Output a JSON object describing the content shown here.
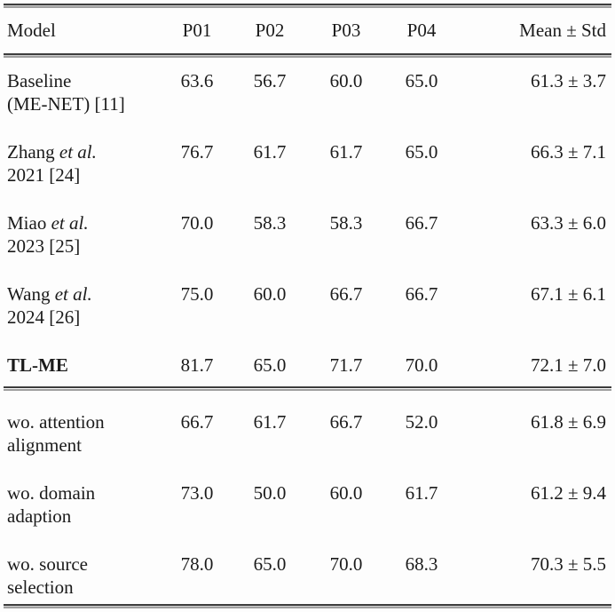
{
  "table": {
    "columns": {
      "model": "Model",
      "p01": "P01",
      "p02": "P02",
      "p03": "P03",
      "p04": "P04",
      "mean": "Mean ± Std"
    },
    "rows": [
      {
        "name": "Baseline",
        "etal": "",
        "line2": "(ME-NET) [11]",
        "p01": "63.6",
        "p02": "56.7",
        "p03": "60.0",
        "p04": "65.0",
        "mean": "61.3 ± 3.7"
      },
      {
        "name": "Zhang",
        "etal": "et al.",
        "line2": "2021 [24]",
        "p01": "76.7",
        "p02": "61.7",
        "p03": "61.7",
        "p04": "65.0",
        "mean": "66.3 ± 7.1"
      },
      {
        "name": "Miao",
        "etal": "et al.",
        "line2": "2023 [25]",
        "p01": "70.0",
        "p02": "58.3",
        "p03": "58.3",
        "p04": "66.7",
        "mean": "63.3 ± 6.0"
      },
      {
        "name": "Wang",
        "etal": "et al.",
        "line2": "2024 [26]",
        "p01": "75.0",
        "p02": "60.0",
        "p03": "66.7",
        "p04": "66.7",
        "mean": "67.1 ± 6.1"
      },
      {
        "name": "TL-ME",
        "etal": "",
        "line2": "",
        "p01": "81.7",
        "p02": "65.0",
        "p03": "71.7",
        "p04": "70.0",
        "mean": "72.1 ± 7.0"
      },
      {
        "name": "wo. attention",
        "etal": "",
        "line2": "alignment",
        "p01": "66.7",
        "p02": "61.7",
        "p03": "66.7",
        "p04": "52.0",
        "mean": "61.8 ± 6.9"
      },
      {
        "name": "wo. domain",
        "etal": "",
        "line2": "adaption",
        "p01": "73.0",
        "p02": "50.0",
        "p03": "60.0",
        "p04": "61.7",
        "mean": "61.2 ± 9.4"
      },
      {
        "name": "wo. source",
        "etal": "",
        "line2": "selection",
        "p01": "78.0",
        "p02": "65.0",
        "p03": "70.0",
        "p04": "68.3",
        "mean": "70.3 ± 5.5"
      }
    ]
  }
}
